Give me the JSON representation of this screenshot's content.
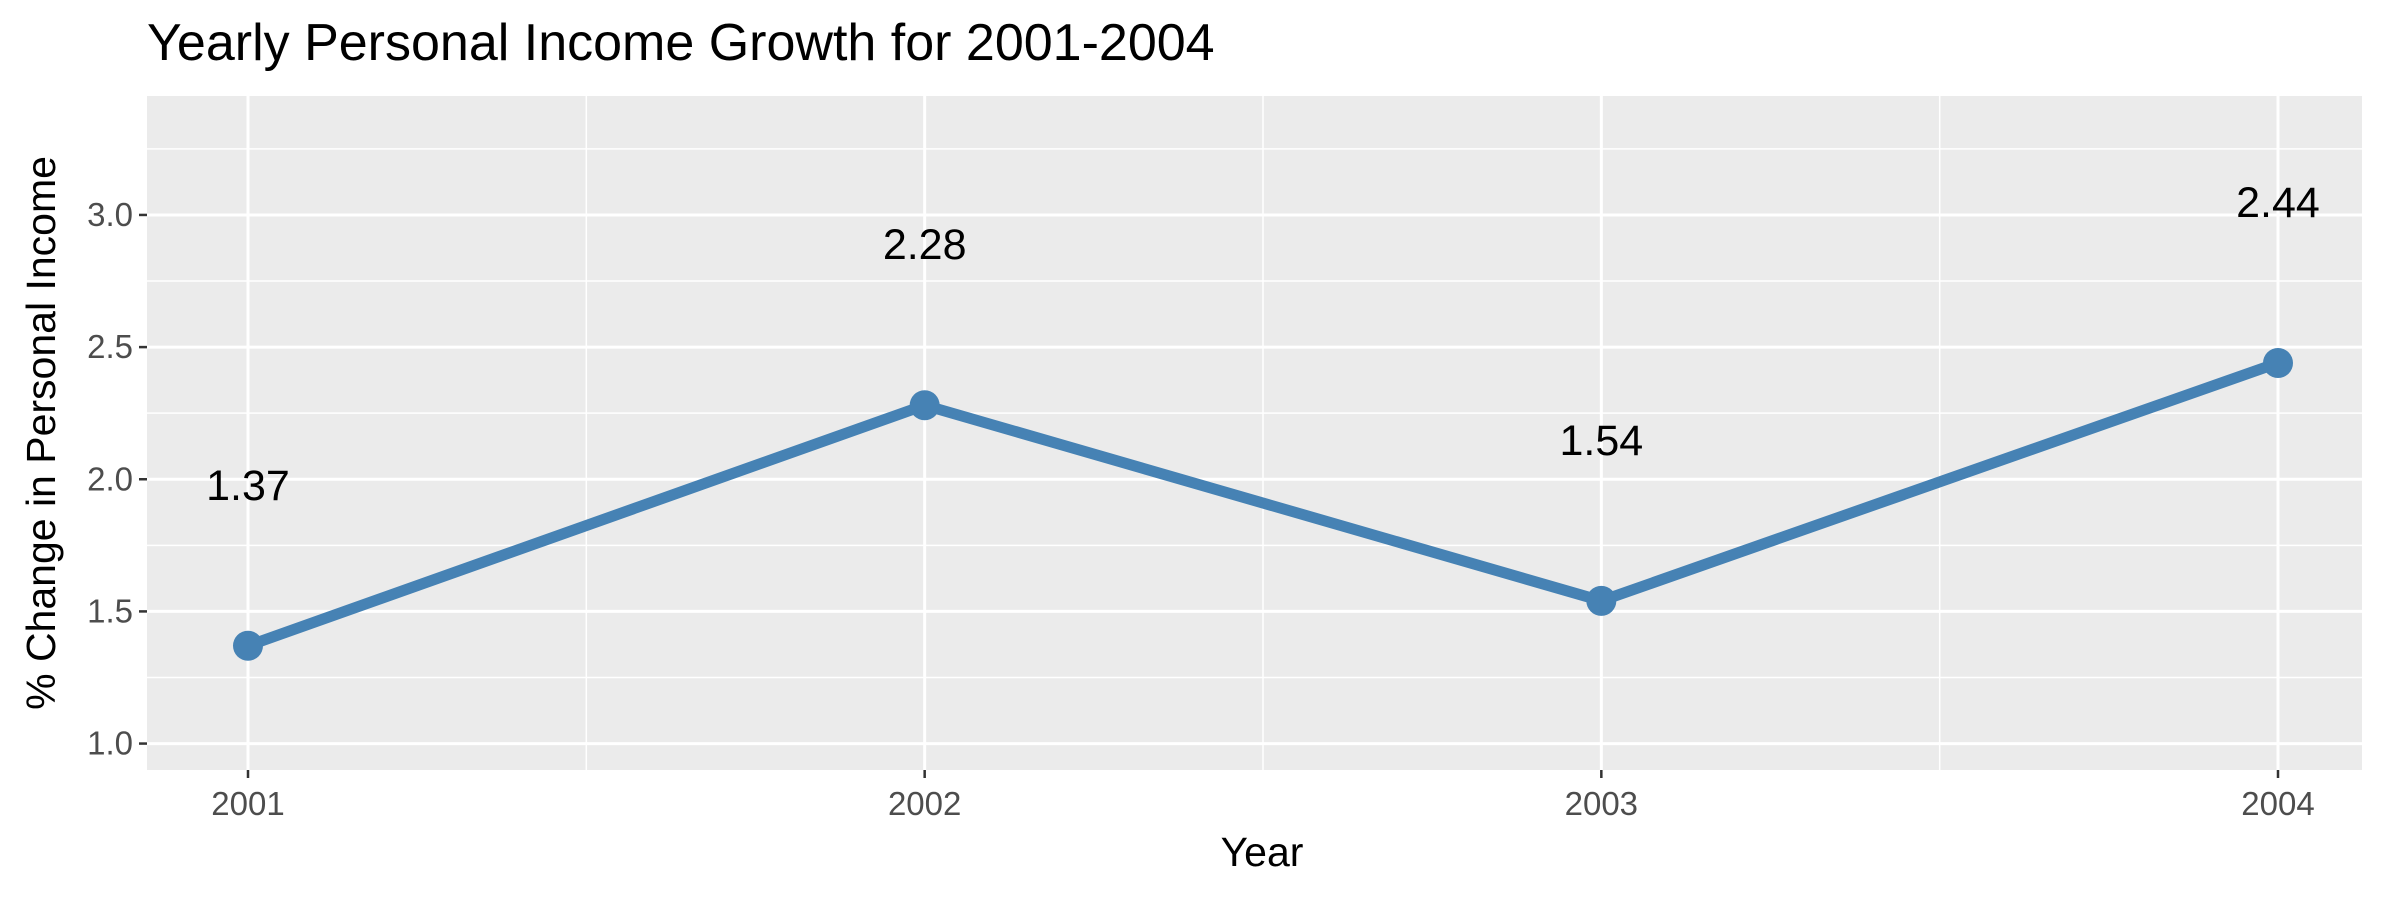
{
  "chart_data": {
    "type": "line",
    "title": "Yearly Personal Income Growth for 2001-2004",
    "xlabel": "Year",
    "ylabel": "% Change in Personal Income",
    "categories": [
      "2001",
      "2002",
      "2003",
      "2004"
    ],
    "series": [
      {
        "values": [
          1.37,
          2.28,
          1.54,
          2.44
        ]
      }
    ],
    "data_labels": [
      "1.37",
      "2.28",
      "1.54",
      "2.44"
    ],
    "yticks": [
      "1.0",
      "1.5",
      "2.0",
      "2.5",
      "3.0"
    ],
    "ylim": [
      0.9,
      3.45
    ],
    "grid": true,
    "legend": "none",
    "colors": {
      "line": "#4682b4",
      "panel": "#ebebeb",
      "grid": "#ffffff"
    }
  }
}
